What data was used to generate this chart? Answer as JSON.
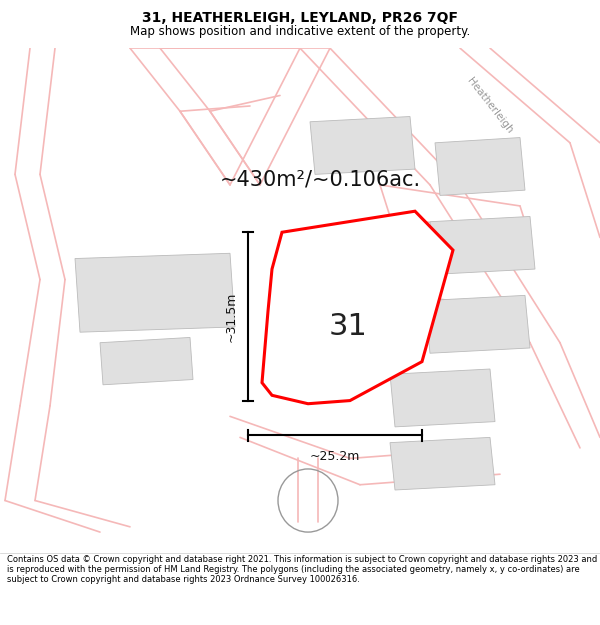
{
  "title": "31, HEATHERLEIGH, LEYLAND, PR26 7QF",
  "subtitle": "Map shows position and indicative extent of the property.",
  "footer": "Contains OS data © Crown copyright and database right 2021. This information is subject to Crown copyright and database rights 2023 and is reproduced with the permission of HM Land Registry. The polygons (including the associated geometry, namely x, y co-ordinates) are subject to Crown copyright and database rights 2023 Ordnance Survey 100026316.",
  "area_label": "~430m²/~0.106ac.",
  "height_label": "~31.5m",
  "width_label": "~25.2m",
  "number_label": "31",
  "map_bg": "#ffffff",
  "red_color": "#ff0000",
  "gray_building_color": "#e0e0e0",
  "gray_building_edge": "#bbbbbb",
  "road_color": "#f5b8b8",
  "road_lw": 1.0,
  "road_edge_color": "#ddaaaa",
  "dim_line_color": "#000000",
  "label_color": "#999999",
  "title_fontsize": 10,
  "subtitle_fontsize": 8.5,
  "area_fontsize": 15,
  "number_fontsize": 22,
  "dim_fontsize": 9,
  "footer_fontsize": 6.0
}
